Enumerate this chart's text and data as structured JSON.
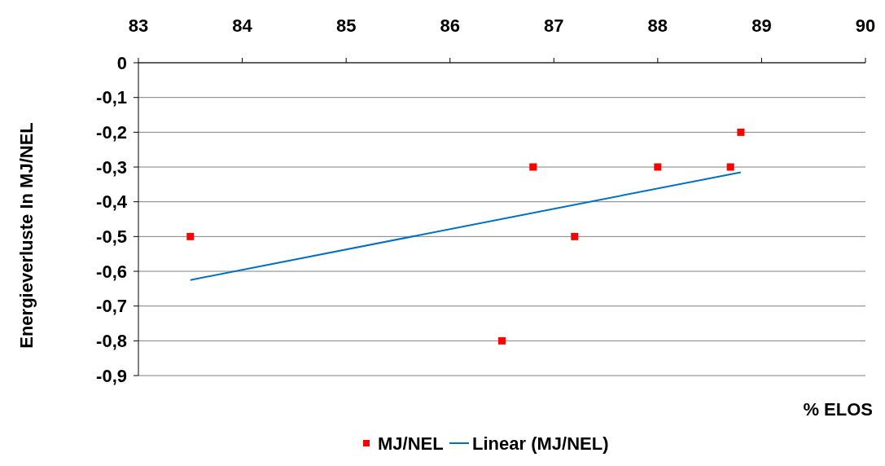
{
  "chart_data": {
    "type": "scatter",
    "xlabel": "% ELOS",
    "ylabel": "Energieverluste In MJ/NEL",
    "xlim": [
      83,
      90
    ],
    "xticks": [
      83,
      84,
      85,
      86,
      87,
      88,
      89,
      90
    ],
    "ylim": [
      -0.9,
      0
    ],
    "yticks": [
      0,
      {
        "value": -0.1,
        "label": "-0,1"
      },
      {
        "value": -0.2,
        "label": "-0,2"
      },
      {
        "value": -0.3,
        "label": "-0,3"
      },
      {
        "value": -0.4,
        "label": "-0,4"
      },
      {
        "value": -0.5,
        "label": "-0,5"
      },
      {
        "value": -0.6,
        "label": "-0,6"
      },
      {
        "value": -0.7,
        "label": "-0,7"
      },
      {
        "value": -0.8,
        "label": "-0,8"
      },
      {
        "value": -0.9,
        "label": "-0,9"
      }
    ],
    "grid": "y",
    "legend": "bottom",
    "series": [
      {
        "name": "MJ/NEL",
        "color": "#ff0000",
        "marker": "square",
        "x": [
          83.5,
          86.5,
          86.8,
          87.2,
          88.0,
          88.7,
          88.8
        ],
        "values": [
          -0.5,
          -0.8,
          -0.3,
          -0.5,
          -0.3,
          -0.3,
          -0.2
        ]
      },
      {
        "name": "Linear (MJ/NEL)",
        "color": "#0070c0",
        "type": "line",
        "x": [
          83.5,
          88.8
        ],
        "values": [
          -0.625,
          -0.315
        ]
      }
    ]
  }
}
